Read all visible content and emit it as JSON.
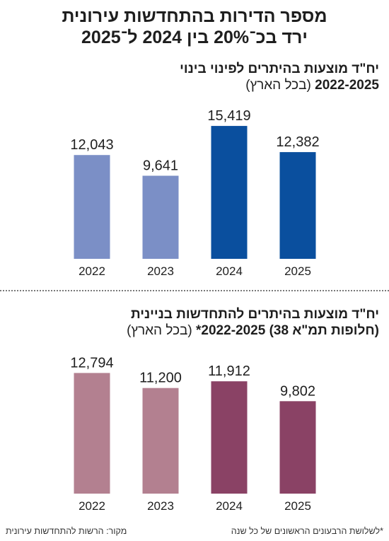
{
  "title_line1": "מספר הדירות בהתחדשות עירונית",
  "title_line2": "ירד בכ־20% בין 2024 ל־2025",
  "chart_data": [
    {
      "type": "bar",
      "title": "יח\"ד מוצעות בהיתרים לפינוי בינוי",
      "subtitle_bold": "2022-2025",
      "subtitle_light": "(בכל הארץ)",
      "categories": [
        "2022",
        "2023",
        "2024",
        "2025"
      ],
      "values": [
        12043,
        9641,
        15419,
        12382
      ],
      "value_labels": [
        "12,043",
        "9,641",
        "15,419",
        "12,382"
      ],
      "colors": [
        "#7b8fc6",
        "#7b8fc6",
        "#0a4f9e",
        "#0a4f9e"
      ],
      "ylim": [
        0,
        16000
      ],
      "grid": false
    },
    {
      "type": "bar",
      "title": "יח\"ד מוצעות בהיתרים להתחדשות בניינית",
      "subtitle_bold": "(חלופות תמ\"א 38) 2022-2025*",
      "subtitle_light": "(בכל הארץ)",
      "categories": [
        "2022",
        "2023",
        "2024",
        "2025"
      ],
      "values": [
        12794,
        11200,
        11912,
        9802
      ],
      "value_labels": [
        "12,794",
        "11,200",
        "11,912",
        "9,802"
      ],
      "colors": [
        "#b38090",
        "#b38090",
        "#8a4265",
        "#8a4265"
      ],
      "ylim": [
        0,
        13500
      ],
      "grid": false
    }
  ],
  "footnote": "*לשלושת הרבעונים הראשונים של כל שנה",
  "source": "מקור: הרשות להתחדשות עירונית"
}
